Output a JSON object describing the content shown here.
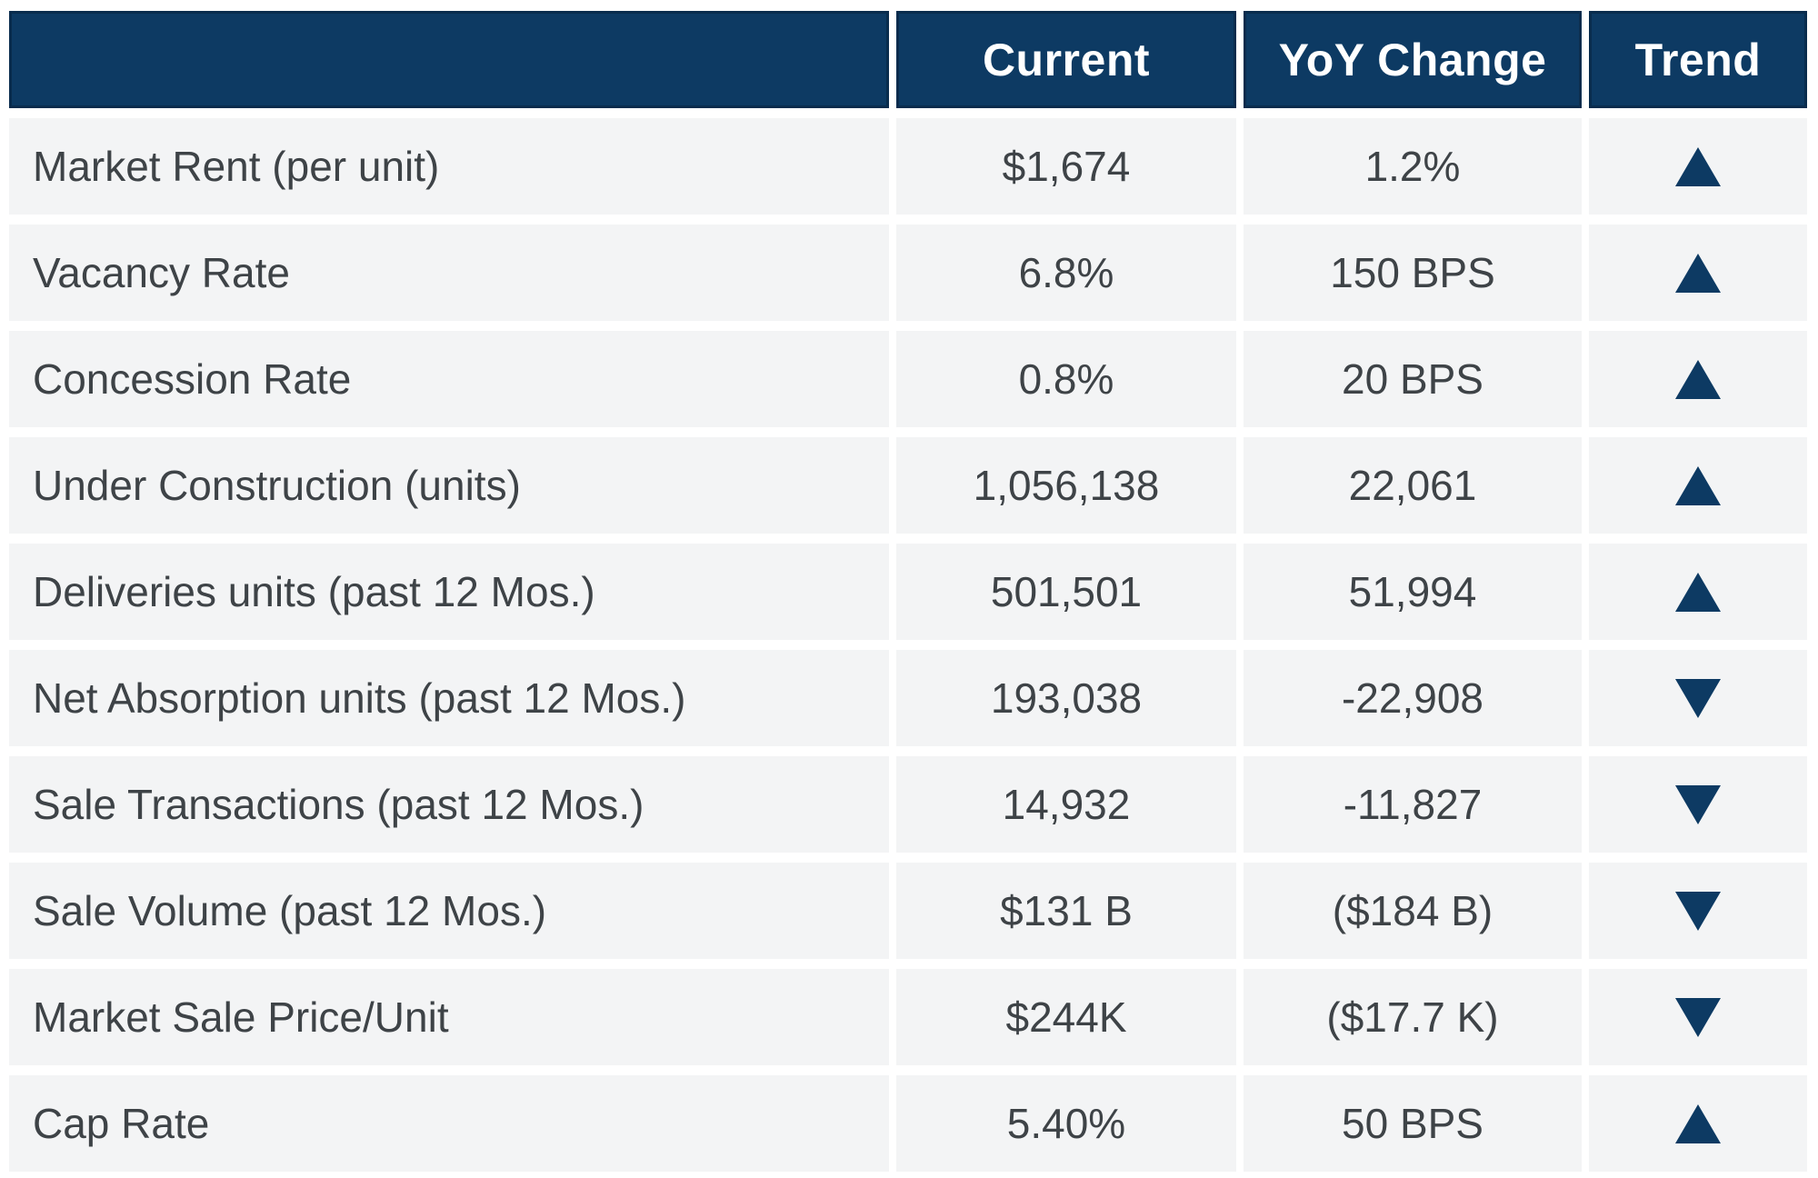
{
  "colors": {
    "navy": "#0d3a63",
    "navy_dark": "#092c4d",
    "row_bg": "#f3f4f5",
    "text": "#3e4347",
    "header_text": "#ffffff",
    "page_bg": "#ffffff"
  },
  "chart_data": {
    "type": "table",
    "title": "",
    "columns": [
      "",
      "Current",
      "YoY Change",
      "Trend"
    ],
    "rows": [
      {
        "label": "Market Rent (per unit)",
        "current": "$1,674",
        "yoy": "1.2%",
        "trend": "up"
      },
      {
        "label": "Vacancy Rate",
        "current": "6.8%",
        "yoy": "150 BPS",
        "trend": "up"
      },
      {
        "label": "Concession Rate",
        "current": "0.8%",
        "yoy": "20 BPS",
        "trend": "up"
      },
      {
        "label": "Under Construction (units)",
        "current": "1,056,138",
        "yoy": "22,061",
        "trend": "up"
      },
      {
        "label": "Deliveries units (past 12 Mos.)",
        "current": "501,501",
        "yoy": "51,994",
        "trend": "up"
      },
      {
        "label": "Net Absorption units (past 12 Mos.)",
        "current": "193,038",
        "yoy": "-22,908",
        "trend": "down"
      },
      {
        "label": "Sale Transactions (past 12 Mos.)",
        "current": "14,932",
        "yoy": "-11,827",
        "trend": "down"
      },
      {
        "label": "Sale Volume (past 12 Mos.)",
        "current": "$131 B",
        "yoy": "($184 B)",
        "trend": "down"
      },
      {
        "label": "Market Sale Price/Unit",
        "current": "$244K",
        "yoy": "($17.7 K)",
        "trend": "down"
      },
      {
        "label": "Cap Rate",
        "current": "5.40%",
        "yoy": "50 BPS",
        "trend": "up"
      }
    ]
  }
}
